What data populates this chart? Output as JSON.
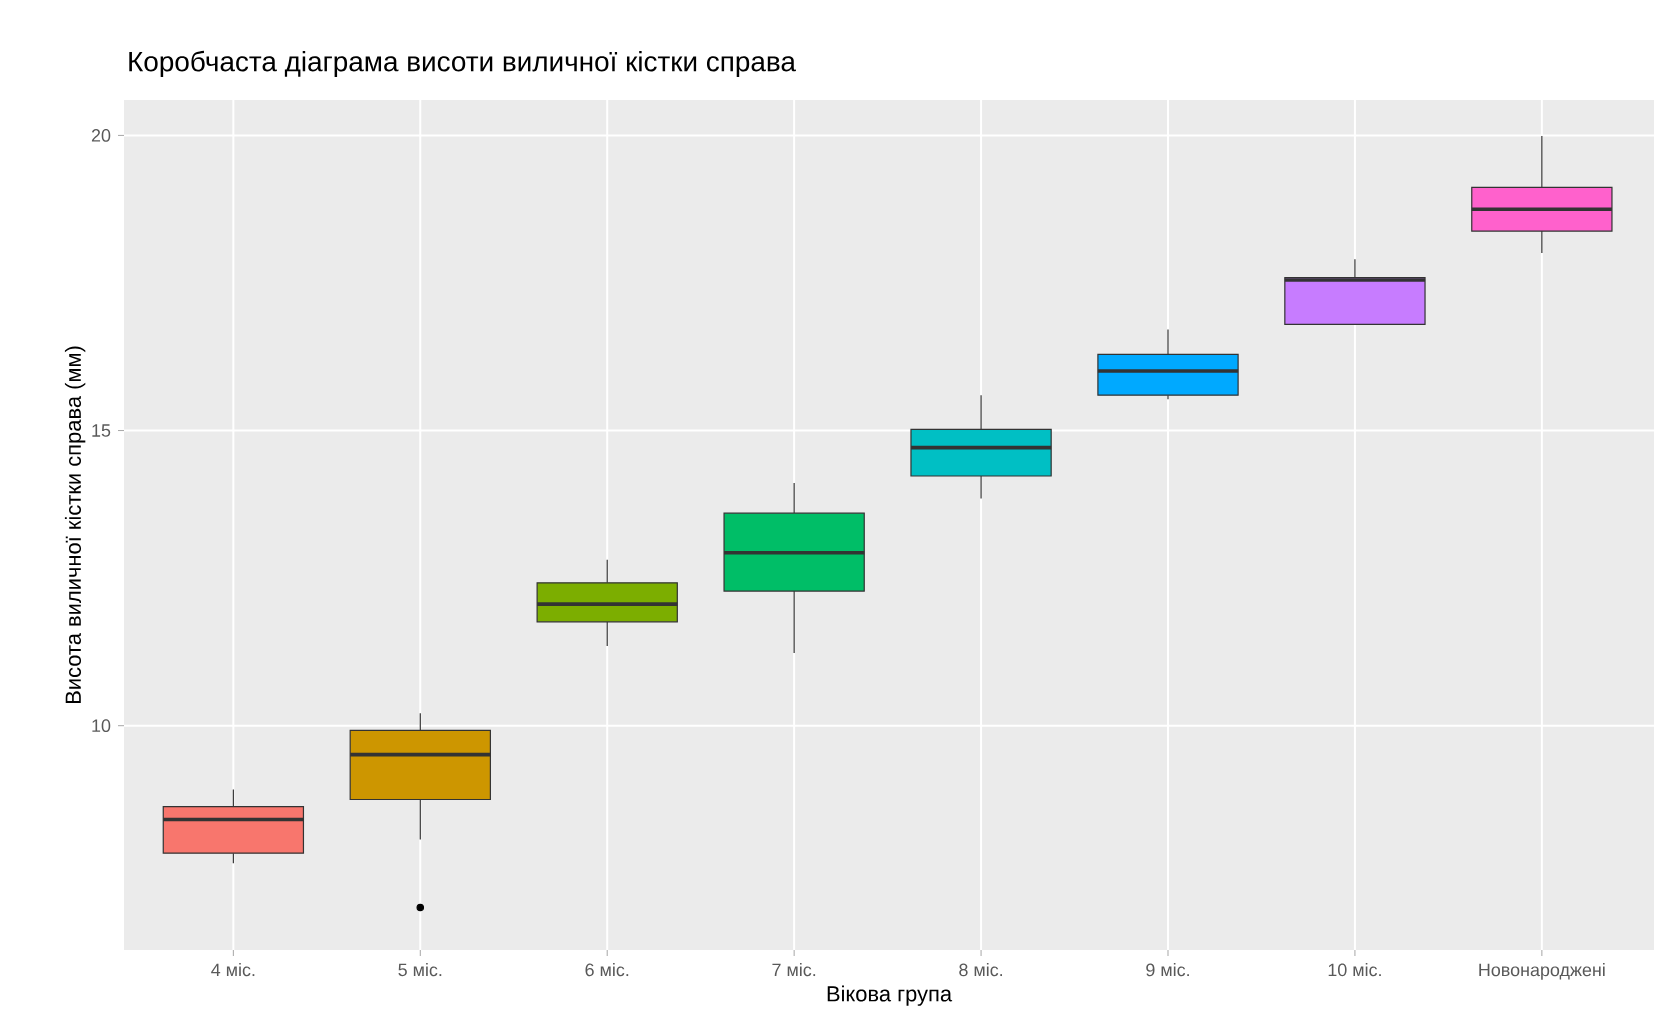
{
  "chart_data": {
    "type": "box",
    "title": "Коробчаста діаграма висоти виличної кістки справа",
    "xlabel": "Вікова група",
    "ylabel": "Висота виличної кістки справа (мм)",
    "categories": [
      "4 міс.",
      "5 міс.",
      "6 міс.",
      "7 міс.",
      "8 міс.",
      "9 міс.",
      "10 міс.",
      "Новонароджені"
    ],
    "colors": [
      "#f8766d",
      "#cd9600",
      "#7cae00",
      "#00be67",
      "#00bfc4",
      "#00a9ff",
      "#c77cff",
      "#ff61cc"
    ],
    "boxes": [
      {
        "low": 7.67,
        "q1": 7.84,
        "median": 8.41,
        "q3": 8.63,
        "high": 8.92
      },
      {
        "low": 8.07,
        "q1": 8.75,
        "median": 9.51,
        "q3": 9.92,
        "high": 10.21,
        "outliers": [
          6.92
        ]
      },
      {
        "low": 11.35,
        "q1": 11.76,
        "median": 12.06,
        "q3": 12.42,
        "high": 12.81
      },
      {
        "low": 11.23,
        "q1": 12.28,
        "median": 12.93,
        "q3": 13.6,
        "high": 14.11
      },
      {
        "low": 13.85,
        "q1": 14.23,
        "median": 14.71,
        "q3": 15.02,
        "high": 15.6
      },
      {
        "low": 15.53,
        "q1": 15.6,
        "median": 16.01,
        "q3": 16.29,
        "high": 16.71
      },
      {
        "low": 16.8,
        "q1": 16.8,
        "median": 17.55,
        "q3": 17.59,
        "high": 17.9
      },
      {
        "low": 18.01,
        "q1": 18.38,
        "median": 18.75,
        "q3": 19.12,
        "high": 19.99
      }
    ],
    "ylim": [
      6.2,
      20.6
    ],
    "yticks": [
      10,
      15,
      20
    ],
    "grid": true
  }
}
